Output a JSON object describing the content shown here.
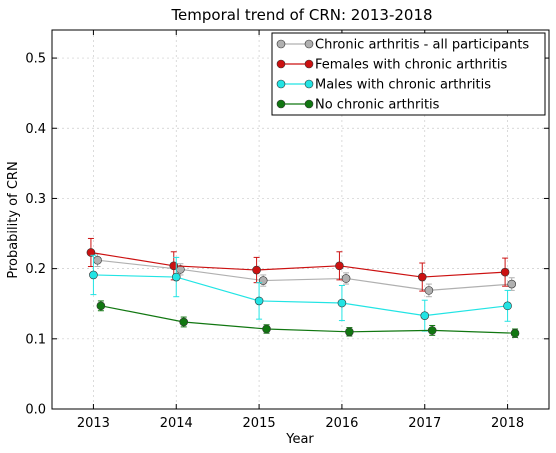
{
  "chart_data": {
    "type": "line",
    "title": "Temporal trend of CRN: 2013-2018",
    "xlabel": "Year",
    "ylabel": "Probability of CRN",
    "x": [
      2013,
      2014,
      2015,
      2016,
      2017,
      2018
    ],
    "xlim": [
      2012.5,
      2018.5
    ],
    "ylim": [
      0.0,
      0.54
    ],
    "yticks": [
      "0.0",
      "0.1",
      "0.2",
      "0.3",
      "0.4",
      "0.5"
    ],
    "grid": true,
    "legend_position": "top-right",
    "series": [
      {
        "name": "Chronic arthritis - all participants",
        "color": "#b0b0b0",
        "x_offset": 0.05,
        "values": [
          0.212,
          0.199,
          0.183,
          0.186,
          0.169,
          0.178
        ],
        "err": [
          0.009,
          0.008,
          0.008,
          0.008,
          0.009,
          0.009
        ]
      },
      {
        "name": "Females with chronic arthritis",
        "color": "#cc1111",
        "x_offset": -0.03,
        "values": [
          0.223,
          0.204,
          0.198,
          0.204,
          0.188,
          0.195
        ],
        "err": [
          0.02,
          0.02,
          0.018,
          0.02,
          0.02,
          0.02
        ]
      },
      {
        "name": "Males with chronic arthritis",
        "color": "#22e4e4",
        "x_offset": 0.0,
        "values": [
          0.191,
          0.188,
          0.154,
          0.151,
          0.133,
          0.147
        ],
        "err": [
          0.028,
          0.028,
          0.026,
          0.025,
          0.022,
          0.022
        ]
      },
      {
        "name": "No chronic arthritis",
        "color": "#117711",
        "x_offset": 0.09,
        "values": [
          0.147,
          0.124,
          0.114,
          0.11,
          0.112,
          0.108
        ],
        "err": [
          0.007,
          0.007,
          0.006,
          0.006,
          0.007,
          0.006
        ]
      }
    ]
  }
}
